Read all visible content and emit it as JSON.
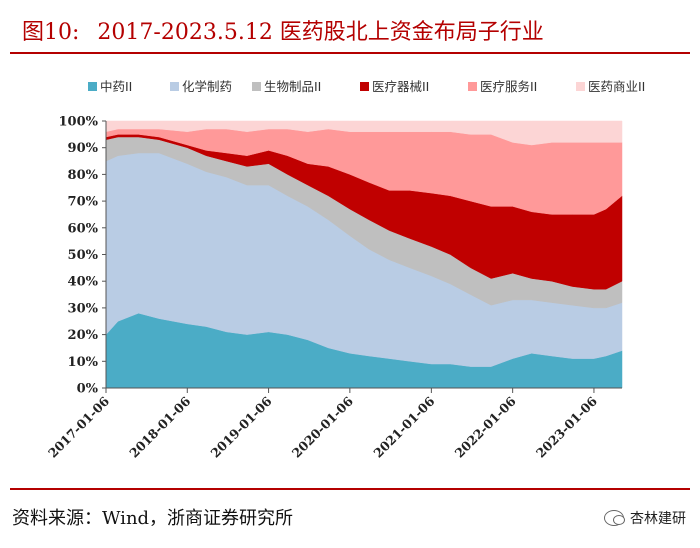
{
  "figure": {
    "number": "图10:",
    "title": "2017-2023.5.12 医药股北上资金布局子行业"
  },
  "source_text": "资料来源：Wind，浙商证券研究所",
  "watermark_text": "杏林建研",
  "chart_data": {
    "type": "area",
    "stacked": true,
    "percent": true,
    "legend_position": "top",
    "ylim": [
      0,
      100
    ],
    "y_ticks": [
      "0%",
      "10%",
      "20%",
      "30%",
      "40%",
      "50%",
      "60%",
      "70%",
      "80%",
      "90%",
      "100%"
    ],
    "x_ticks": [
      "2017-01-06",
      "2018-01-06",
      "2019-01-06",
      "2020-01-06",
      "2021-01-06",
      "2022-01-06",
      "2023-01-06"
    ],
    "x": [
      "2017-01-06",
      "2017-03-01",
      "2017-06-01",
      "2017-09-01",
      "2018-01-06",
      "2018-04-01",
      "2018-07-01",
      "2018-10-01",
      "2019-01-06",
      "2019-04-01",
      "2019-07-01",
      "2019-10-01",
      "2020-01-06",
      "2020-04-01",
      "2020-07-01",
      "2020-10-01",
      "2021-01-06",
      "2021-04-01",
      "2021-07-01",
      "2021-10-01",
      "2022-01-06",
      "2022-04-01",
      "2022-07-01",
      "2022-10-01",
      "2023-01-06",
      "2023-03-01",
      "2023-05-12"
    ],
    "series": [
      {
        "name": "中药II",
        "color": "#4bacc6",
        "values": [
          20,
          25,
          28,
          26,
          24,
          23,
          21,
          20,
          21,
          20,
          18,
          15,
          13,
          12,
          11,
          10,
          9,
          9,
          8,
          8,
          11,
          13,
          12,
          11,
          11,
          12,
          14
        ]
      },
      {
        "name": "化学制药",
        "color": "#b9cce4",
        "values": [
          65,
          62,
          60,
          62,
          60,
          58,
          58,
          56,
          55,
          52,
          50,
          48,
          44,
          40,
          37,
          35,
          33,
          30,
          27,
          23,
          22,
          20,
          20,
          20,
          19,
          18,
          18
        ]
      },
      {
        "name": "生物制品II",
        "color": "#bfbfbf",
        "values": [
          8,
          7,
          6,
          5,
          6,
          6,
          6,
          7,
          8,
          8,
          8,
          9,
          10,
          11,
          11,
          11,
          11,
          11,
          10,
          10,
          10,
          8,
          8,
          7,
          7,
          7,
          8
        ]
      },
      {
        "name": "医疗器械II",
        "color": "#c00000",
        "values": [
          1,
          1,
          1,
          1,
          1,
          2,
          3,
          4,
          5,
          7,
          8,
          11,
          13,
          14,
          15,
          18,
          20,
          22,
          25,
          27,
          25,
          25,
          25,
          27,
          28,
          30,
          32
        ]
      },
      {
        "name": "医疗服务II",
        "color": "#ff9999",
        "values": [
          2,
          2,
          2,
          3,
          5,
          8,
          9,
          9,
          8,
          10,
          12,
          14,
          16,
          19,
          22,
          22,
          23,
          24,
          25,
          27,
          24,
          25,
          27,
          27,
          27,
          25,
          20
        ]
      },
      {
        "name": "医药商业II",
        "color": "#fcd5d5",
        "values": [
          4,
          3,
          3,
          3,
          4,
          3,
          3,
          4,
          3,
          3,
          4,
          3,
          4,
          4,
          4,
          4,
          4,
          4,
          5,
          5,
          8,
          9,
          8,
          8,
          8,
          8,
          8
        ]
      }
    ]
  }
}
